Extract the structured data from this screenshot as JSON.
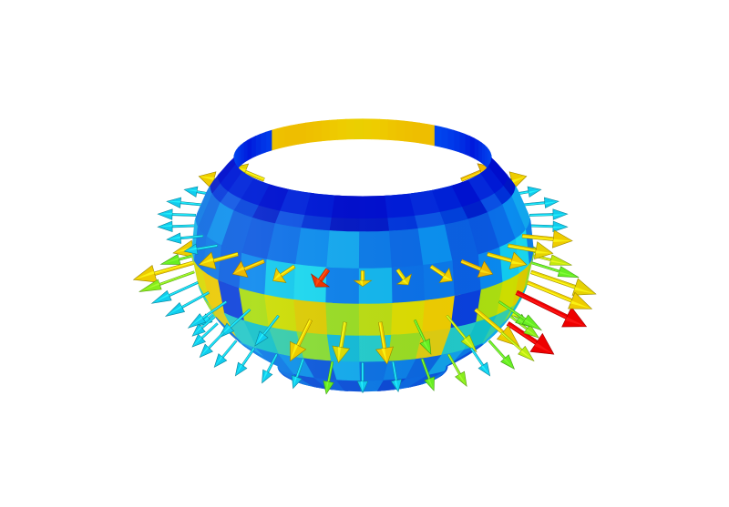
{
  "figure": {
    "kind": "3d-vector-field-on-truncated-sphere",
    "background": "#ffffff",
    "colormap": [
      {
        "level": 0.0,
        "color": "#0000d0"
      },
      {
        "level": 0.18,
        "color": "#0044ee"
      },
      {
        "level": 0.32,
        "color": "#0a7ff0"
      },
      {
        "level": 0.45,
        "color": "#11ccee"
      },
      {
        "level": 0.55,
        "color": "#66ee22"
      },
      {
        "level": 0.68,
        "color": "#bbee11"
      },
      {
        "level": 0.8,
        "color": "#eecc00"
      },
      {
        "level": 1.0,
        "color": "#ee0000"
      }
    ],
    "bands": [
      {
        "name": "band-1",
        "shades": [
          "#0018c8",
          "#0035dd",
          "#0a55e6",
          "#0040dc",
          "#0020cc",
          "#0a50e4",
          "#0030d8",
          "#0015c4"
        ]
      },
      {
        "name": "band-2",
        "shades": [
          "#0a6fe8",
          "#0a8cef",
          "#11a8f0",
          "#0a7ae9",
          "#0a6ae6",
          "#0a90f0",
          "#0a60e2",
          "#0a58e0"
        ]
      },
      {
        "name": "band-3",
        "shades": [
          "#0a78ea",
          "#0a60e3",
          "#0a88ee",
          "#11c9ee",
          "#19d8f0",
          "#0a80ec",
          "#11b6ee",
          "#0a70e8"
        ]
      },
      {
        "name": "band-4",
        "shades": [
          "#99dd22",
          "#bbdd11",
          "#dddd00",
          "#eecc00",
          "#0a40dc",
          "#aadd11",
          "#ccdd00",
          "#ddcc00"
        ]
      },
      {
        "name": "band-5",
        "shades": [
          "#11c0c8",
          "#33ccaa",
          "#88dd33",
          "#11bbd8",
          "#22cccc",
          "#99dd22",
          "#ddcc11",
          "#22c8c8"
        ]
      },
      {
        "name": "band-6",
        "shades": [
          "#0a80e8",
          "#0a66e0",
          "#11a0e8",
          "#0a78e6",
          "#0a90ea",
          "#0a58dc",
          "#11aaee",
          "#0a70e4"
        ]
      },
      {
        "name": "band-7",
        "shades": [
          "#0a60e0",
          "#0a50da",
          "#0a78e6",
          "#0a48d6",
          "#0a68e2",
          "#0a56dc",
          "#0a70e4",
          "#0a4ed8"
        ]
      }
    ],
    "vector_rings": [
      {
        "name": "ring-upper",
        "count": 30,
        "color_levels": [
          0.8,
          0.8,
          0.82,
          0.78,
          0.8,
          0.45,
          0.45,
          0.45,
          0.45,
          0.45,
          0.45,
          0.8,
          0.82,
          0.8,
          0.95,
          0.8,
          0.78,
          0.8,
          0.82,
          0.8,
          0.78,
          0.8,
          0.45,
          0.45,
          0.45,
          0.45,
          0.8,
          0.82,
          0.8,
          0.78
        ]
      },
      {
        "name": "ring-middle",
        "count": 30,
        "color_levels": [
          1.0,
          0.68,
          0.8,
          0.72,
          0.8,
          0.55,
          0.8,
          0.6,
          0.45,
          0.45,
          0.45,
          0.45,
          0.45,
          0.8,
          0.75,
          0.8,
          0.55,
          0.68,
          0.8,
          0.55,
          1.0,
          0.8,
          0.78,
          0.55,
          0.7,
          0.6,
          0.8,
          0.72,
          0.68,
          0.55
        ]
      },
      {
        "name": "ring-lower",
        "count": 30,
        "color_levels": [
          0.68,
          0.6,
          1.0,
          0.55,
          0.45,
          0.45,
          0.45,
          0.45,
          0.45,
          0.45,
          0.45,
          0.45,
          0.45,
          0.55,
          0.45,
          0.45,
          0.55,
          0.6,
          0.45,
          0.55,
          0.68,
          1.0,
          0.6,
          0.55,
          0.68,
          0.6,
          0.68,
          0.55,
          0.62,
          0.6
        ]
      }
    ]
  }
}
